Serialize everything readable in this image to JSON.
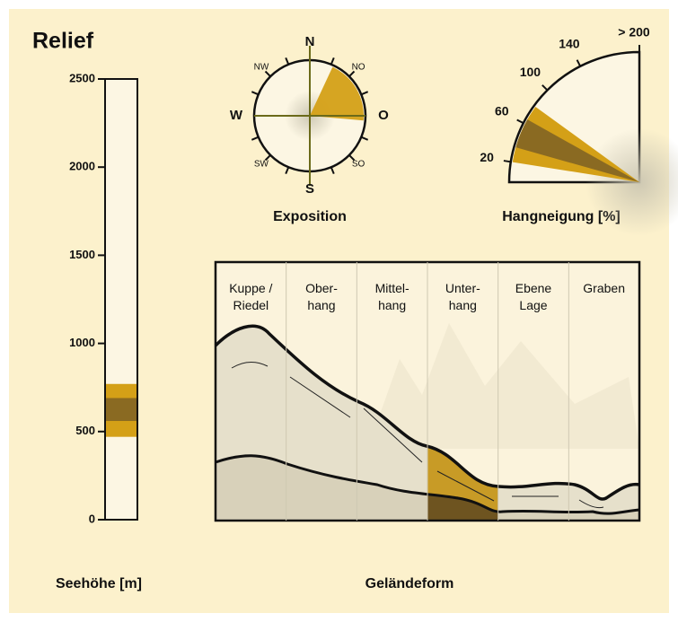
{
  "title": "Relief",
  "elevation": {
    "label": "Seehöhe [m]",
    "ylim": [
      0,
      2500
    ],
    "yticks": [
      0,
      500,
      1000,
      1500,
      2000,
      2500
    ],
    "range": [
      470,
      770
    ],
    "core": [
      560,
      690
    ]
  },
  "exposition": {
    "label": "Exposition",
    "directions": [
      "N",
      "NO",
      "O",
      "SO",
      "S",
      "SW",
      "W",
      "NW"
    ],
    "sector": [
      25,
      95
    ]
  },
  "slope": {
    "label": "Hangneigung [%]",
    "xlim": [
      0,
      200
    ],
    "ticks": [
      20,
      60,
      100,
      140,
      {
        "value": 200,
        "label": "> 200"
      }
    ],
    "range": [
      20,
      80
    ],
    "core": [
      35,
      65
    ]
  },
  "landform": {
    "label": "Geländeform",
    "columns": [
      "Kuppe /\nRiedel",
      "Ober-\nhang",
      "Mittel-\nhang",
      "Unter-\nhang",
      "Ebene\nLage",
      "Graben"
    ],
    "selected": 3
  }
}
